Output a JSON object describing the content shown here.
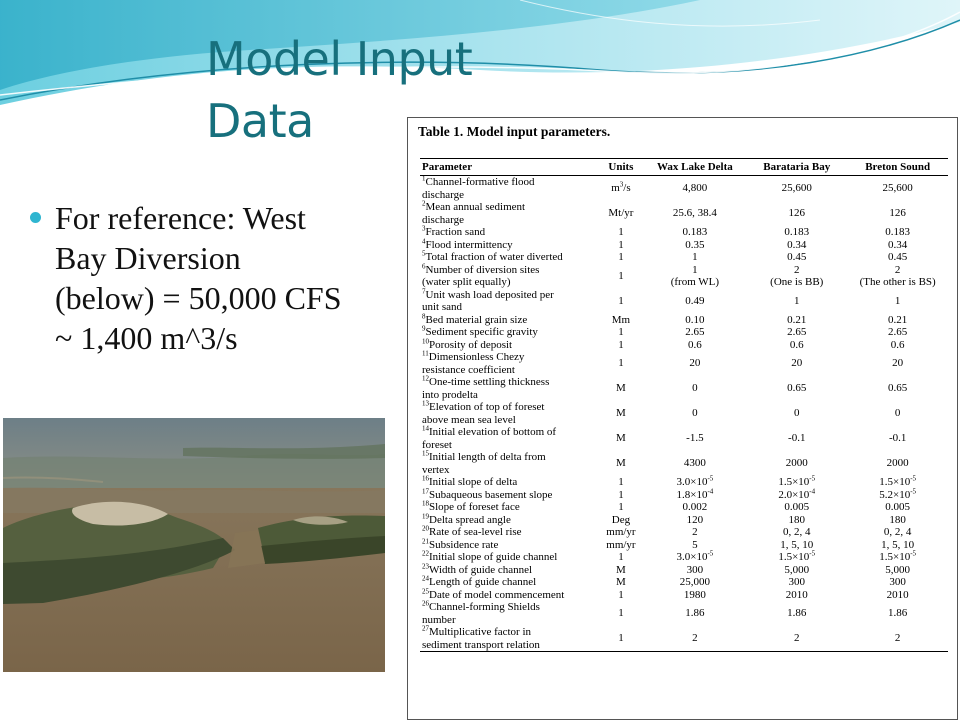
{
  "slide": {
    "title_line1": "Model Input",
    "title_line2": "Data",
    "bullet_lines": [
      "For reference: West",
      "Bay Diversion",
      "(below) = 50,000 CFS",
      "~ 1,400 m^3/s"
    ],
    "accent_color": "#17707d",
    "bullet_color": "#2fb5d0"
  },
  "table": {
    "caption": "Table 1. Model input parameters.",
    "headers": [
      "Parameter",
      "Units",
      "Wax Lake Delta",
      "Barataria Bay",
      "Breton Sound"
    ],
    "rows": [
      {
        "n": "1",
        "p1": "Channel-formative flood",
        "p2": "discharge",
        "u": "m",
        "usup": "3",
        "usuf": "/s",
        "wax": "4,800",
        "bar": "25,600",
        "bre": "25,600"
      },
      {
        "n": "2",
        "p1": "Mean annual sediment",
        "p2": "discharge",
        "u": "Mt/yr",
        "wax": "25.6, 38.4",
        "bar": "126",
        "bre": "126"
      },
      {
        "n": "3",
        "p1": "Fraction sand",
        "u": "1",
        "wax": "0.183",
        "bar": "0.183",
        "bre": "0.183"
      },
      {
        "n": "4",
        "p1": "Flood intermittency",
        "u": "1",
        "wax": "0.35",
        "bar": "0.34",
        "bre": "0.34"
      },
      {
        "n": "5",
        "p1": "Total fraction of water diverted",
        "u": "1",
        "wax": "1",
        "bar": "0.45",
        "bre": "0.45"
      },
      {
        "n": "6",
        "p1": "Number of diversion sites",
        "p2": "(water split equally)",
        "u": "1",
        "wax": "1",
        "wax2": "(from WL)",
        "bar": "2",
        "bar2": "(One is BB)",
        "bre": "2",
        "bre2": "(The other is BS)"
      },
      {
        "n": "7",
        "p1": "Unit wash load deposited per",
        "p2": "unit sand",
        "u": "1",
        "wax": "0.49",
        "bar": "1",
        "bre": "1"
      },
      {
        "n": "8",
        "p1": "Bed material grain size",
        "u": "Mm",
        "wax": "0.10",
        "bar": "0.21",
        "bre": "0.21"
      },
      {
        "n": "9",
        "p1": "Sediment specific gravity",
        "u": "1",
        "wax": "2.65",
        "bar": "2.65",
        "bre": "2.65"
      },
      {
        "n": "10",
        "p1": "Porosity of deposit",
        "u": "1",
        "wax": "0.6",
        "bar": "0.6",
        "bre": "0.6"
      },
      {
        "n": "11",
        "p1": "Dimensionless Chezy",
        "p2": "resistance coefficient",
        "u": "1",
        "wax": "20",
        "bar": "20",
        "bre": "20"
      },
      {
        "n": "12",
        "p1": "One-time settling thickness",
        "p2": "into prodelta",
        "u": "M",
        "wax": "0",
        "bar": "0.65",
        "bre": "0.65"
      },
      {
        "n": "13",
        "p1": "Elevation of top of foreset",
        "p2": "above mean sea level",
        "u": "M",
        "wax": "0",
        "bar": "0",
        "bre": "0"
      },
      {
        "n": "14",
        "p1": "Initial elevation of bottom of",
        "p2": "foreset",
        "u": "M",
        "wax": "-1.5",
        "bar": "-0.1",
        "bre": "-0.1"
      },
      {
        "n": "15",
        "p1": "Initial length of delta from",
        "p2": "vertex",
        "u": "M",
        "wax": "4300",
        "bar": "2000",
        "bre": "2000"
      },
      {
        "n": "16",
        "p1": "Initial slope of delta",
        "u": "1",
        "wax": "3.0×10",
        "waxsup": "-5",
        "bar": "1.5×10",
        "barsup": "-5",
        "bre": "1.5×10",
        "bresup": "-5"
      },
      {
        "n": "17",
        "p1": "Subaqueous basement slope",
        "u": "1",
        "wax": "1.8×10",
        "waxsup": "-4",
        "bar": "2.0×10",
        "barsup": "-4",
        "bre": "5.2×10",
        "bresup": "-5"
      },
      {
        "n": "18",
        "p1": "Slope of foreset face",
        "u": "1",
        "wax": "0.002",
        "bar": "0.005",
        "bre": "0.005"
      },
      {
        "n": "19",
        "p1": "Delta spread angle",
        "u": "Deg",
        "wax": "120",
        "bar": "180",
        "bre": "180"
      },
      {
        "n": "20",
        "p1": "Rate of sea-level rise",
        "u": "mm/yr",
        "wax": "2",
        "bar": "0, 2, 4",
        "bre": "0, 2, 4"
      },
      {
        "n": "21",
        "p1": "Subsidence rate",
        "u": "mm/yr",
        "wax": "5",
        "bar": "1, 5, 10",
        "bre": "1, 5, 10"
      },
      {
        "n": "22",
        "p1": "Initial slope of guide channel",
        "u": "1",
        "wax": "3.0×10",
        "waxsup": "-5",
        "bar": "1.5×10",
        "barsup": "-5",
        "bre": "1.5×10",
        "bresup": "-5"
      },
      {
        "n": "23",
        "p1": "Width of guide channel",
        "u": "M",
        "wax": "300",
        "bar": "5,000",
        "bre": "5,000"
      },
      {
        "n": "24",
        "p1": "Length of guide channel",
        "u": "M",
        "wax": "25,000",
        "bar": "300",
        "bre": "300"
      },
      {
        "n": "25",
        "p1": "Date of model commencement",
        "u": "1",
        "wax": "1980",
        "bar": "2010",
        "bre": "2010"
      },
      {
        "n": "26",
        "p1": "Channel-forming Shields",
        "p2": "number",
        "u": "1",
        "wax": "1.86",
        "bar": "1.86",
        "bre": "1.86"
      },
      {
        "n": "27",
        "p1": "Multiplicative factor in",
        "p2": "sediment transport relation",
        "u": "1",
        "wax": "2",
        "bar": "2",
        "bre": "2"
      }
    ]
  }
}
